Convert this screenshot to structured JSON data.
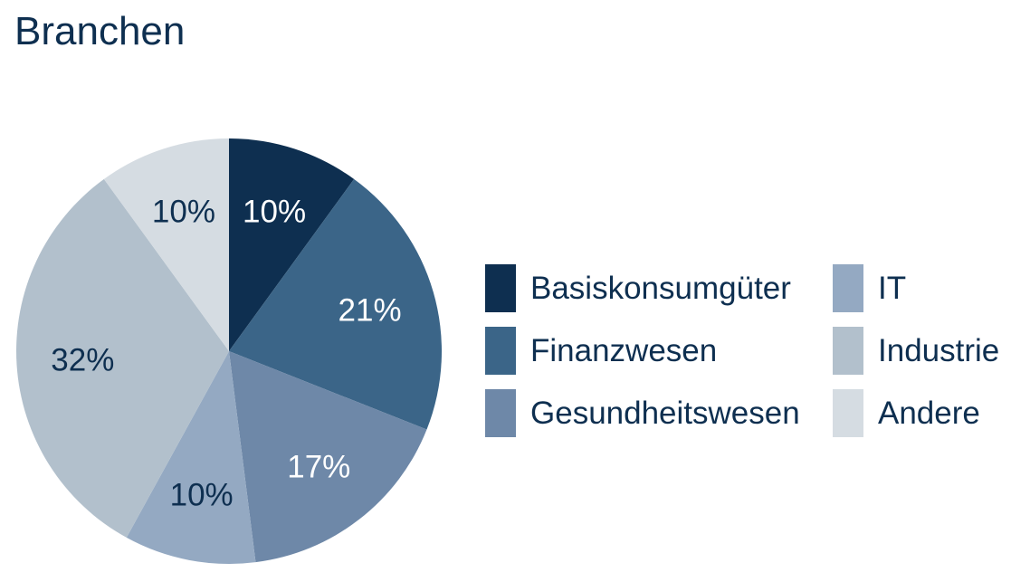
{
  "title": "Branchen",
  "chart_data": {
    "type": "pie",
    "title": "Branchen",
    "slices": [
      {
        "name": "Basiskonsumgüter",
        "value": 10,
        "label": "10%",
        "color": "#0e2f50",
        "label_color": "#ffffff"
      },
      {
        "name": "Finanzwesen",
        "value": 21,
        "label": "21%",
        "color": "#3b6588",
        "label_color": "#ffffff"
      },
      {
        "name": "Gesundheitswesen",
        "value": 17,
        "label": "17%",
        "color": "#6e88a8",
        "label_color": "#ffffff"
      },
      {
        "name": "IT",
        "value": 10,
        "label": "10%",
        "color": "#94a9c2",
        "label_color": "#0e2f50"
      },
      {
        "name": "Industrie",
        "value": 32,
        "label": "32%",
        "color": "#b2c0cc",
        "label_color": "#0e2f50"
      },
      {
        "name": "Andere",
        "value": 10,
        "label": "10%",
        "color": "#d5dce2",
        "label_color": "#0e2f50"
      }
    ],
    "legend_position": "right",
    "start_angle": "top",
    "direction": "clockwise"
  }
}
